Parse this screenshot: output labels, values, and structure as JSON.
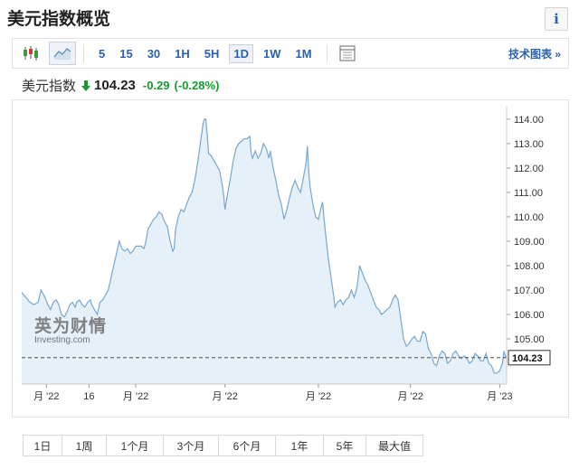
{
  "title": "美元指数概览",
  "info_label": "i",
  "toolbar": {
    "icons": [
      "candlestick-icon",
      "area-chart-icon",
      "table-icon"
    ],
    "intervals": [
      "5",
      "15",
      "30",
      "1H",
      "5H",
      "1D",
      "1W",
      "1M"
    ],
    "active_interval": "1D",
    "tech_chart_label": "技术图表 »"
  },
  "quote": {
    "name": "美元指数",
    "last": "104.23",
    "change": "-0.29",
    "change_pct": "(-0.28%)",
    "direction": "down",
    "color_down": "#169c2b"
  },
  "watermark": {
    "cn": "英为财情",
    "en": "Investing.com"
  },
  "ranges": [
    "1日",
    "1周",
    "1个月",
    "3个月",
    "6个月",
    "1年",
    "5年",
    "最大值"
  ],
  "chart_data": {
    "type": "area",
    "y_ticks": [
      "114.00",
      "113.00",
      "112.00",
      "111.00",
      "110.00",
      "109.00",
      "108.00",
      "107.00",
      "106.00",
      "105.00"
    ],
    "ylim": [
      103.15,
      114.55
    ],
    "x_tick_labels": [
      "月 '22",
      "16",
      "月 '22",
      "月 '22",
      "月 '22",
      "月 '22",
      "月 '23"
    ],
    "x_tick_positions": [
      18,
      49,
      83,
      148,
      216,
      283,
      348
    ],
    "last_value": 104.23,
    "last_label": "104.23",
    "colors": {
      "line": "#7aa7cf",
      "fill": "#e6f0f8",
      "dash": "#333333"
    },
    "points": [
      [
        0,
        106.9
      ],
      [
        3,
        106.7
      ],
      [
        6,
        106.5
      ],
      [
        9,
        106.4
      ],
      [
        12,
        106.5
      ],
      [
        14,
        107.0
      ],
      [
        16,
        106.8
      ],
      [
        17,
        106.7
      ],
      [
        19,
        106.4
      ],
      [
        21,
        106.2
      ],
      [
        23,
        106.5
      ],
      [
        25,
        106.6
      ],
      [
        27,
        106.4
      ],
      [
        29,
        106.0
      ],
      [
        31,
        105.9
      ],
      [
        33,
        106.1
      ],
      [
        35,
        106.4
      ],
      [
        37,
        106.5
      ],
      [
        39,
        106.3
      ],
      [
        40,
        106.5
      ],
      [
        42,
        106.6
      ],
      [
        44,
        106.4
      ],
      [
        46,
        106.3
      ],
      [
        48,
        106.5
      ],
      [
        50,
        106.6
      ],
      [
        51,
        106.4
      ],
      [
        53,
        106.2
      ],
      [
        55,
        106.0
      ],
      [
        57,
        106.5
      ],
      [
        59,
        106.6
      ],
      [
        61,
        106.8
      ],
      [
        63,
        107.0
      ],
      [
        65,
        107.5
      ],
      [
        67,
        108.0
      ],
      [
        69,
        108.5
      ],
      [
        71,
        109.0
      ],
      [
        73,
        108.7
      ],
      [
        75,
        108.6
      ],
      [
        77,
        108.7
      ],
      [
        79,
        108.5
      ],
      [
        81,
        108.6
      ],
      [
        83,
        108.8
      ],
      [
        85,
        108.8
      ],
      [
        87,
        108.8
      ],
      [
        89,
        108.7
      ],
      [
        90,
        108.9
      ],
      [
        92,
        109.5
      ],
      [
        94,
        109.7
      ],
      [
        96,
        109.9
      ],
      [
        98,
        110.0
      ],
      [
        100,
        110.2
      ],
      [
        102,
        110.1
      ],
      [
        104,
        109.8
      ],
      [
        106,
        109.6
      ],
      [
        108,
        109.0
      ],
      [
        110,
        108.6
      ],
      [
        111,
        108.7
      ],
      [
        112,
        109.5
      ],
      [
        114,
        110.0
      ],
      [
        116,
        110.3
      ],
      [
        118,
        110.2
      ],
      [
        120,
        110.5
      ],
      [
        122,
        110.8
      ],
      [
        124,
        111.0
      ],
      [
        126,
        111.5
      ],
      [
        128,
        112.2
      ],
      [
        130,
        113.0
      ],
      [
        132,
        113.8
      ],
      [
        133,
        114.0
      ],
      [
        134,
        114.0
      ],
      [
        135,
        113.4
      ],
      [
        136,
        112.6
      ],
      [
        138,
        112.5
      ],
      [
        140,
        112.3
      ],
      [
        142,
        112.1
      ],
      [
        144,
        111.9
      ],
      [
        146,
        111.3
      ],
      [
        147,
        110.9
      ],
      [
        148,
        110.3
      ],
      [
        150,
        111.0
      ],
      [
        152,
        111.6
      ],
      [
        154,
        112.3
      ],
      [
        156,
        112.8
      ],
      [
        158,
        113.0
      ],
      [
        160,
        113.1
      ],
      [
        162,
        113.2
      ],
      [
        164,
        113.2
      ],
      [
        166,
        113.3
      ],
      [
        167,
        112.6
      ],
      [
        168,
        112.4
      ],
      [
        170,
        112.7
      ],
      [
        172,
        112.4
      ],
      [
        174,
        112.6
      ],
      [
        176,
        113.0
      ],
      [
        178,
        112.8
      ],
      [
        180,
        112.4
      ],
      [
        181,
        112.7
      ],
      [
        183,
        112.0
      ],
      [
        185,
        111.5
      ],
      [
        187,
        110.9
      ],
      [
        189,
        110.5
      ],
      [
        191,
        109.9
      ],
      [
        193,
        110.3
      ],
      [
        195,
        110.8
      ],
      [
        197,
        111.2
      ],
      [
        199,
        111.5
      ],
      [
        201,
        111.2
      ],
      [
        203,
        111.0
      ],
      [
        205,
        111.6
      ],
      [
        207,
        112.2
      ],
      [
        208,
        112.9
      ],
      [
        209,
        111.8
      ],
      [
        210,
        111.2
      ],
      [
        212,
        110.5
      ],
      [
        214,
        110.0
      ],
      [
        216,
        109.9
      ],
      [
        218,
        110.4
      ],
      [
        219,
        110.6
      ],
      [
        221,
        109.4
      ],
      [
        223,
        108.4
      ],
      [
        225,
        107.6
      ],
      [
        227,
        106.8
      ],
      [
        228,
        106.3
      ],
      [
        230,
        106.5
      ],
      [
        232,
        106.6
      ],
      [
        234,
        106.4
      ],
      [
        236,
        106.6
      ],
      [
        238,
        106.7
      ],
      [
        240,
        107.0
      ],
      [
        242,
        106.7
      ],
      [
        244,
        107.1
      ],
      [
        246,
        108.0
      ],
      [
        248,
        107.7
      ],
      [
        250,
        107.4
      ],
      [
        252,
        107.2
      ],
      [
        254,
        106.9
      ],
      [
        256,
        106.6
      ],
      [
        258,
        106.3
      ],
      [
        260,
        106.2
      ],
      [
        262,
        106.0
      ],
      [
        264,
        106.1
      ],
      [
        266,
        106.2
      ],
      [
        268,
        106.3
      ],
      [
        270,
        106.6
      ],
      [
        272,
        106.8
      ],
      [
        274,
        106.6
      ],
      [
        276,
        105.8
      ],
      [
        278,
        105.0
      ],
      [
        280,
        104.7
      ],
      [
        282,
        104.8
      ],
      [
        284,
        105.0
      ],
      [
        286,
        105.1
      ],
      [
        288,
        104.9
      ],
      [
        290,
        104.9
      ],
      [
        292,
        105.3
      ],
      [
        294,
        105.2
      ],
      [
        296,
        104.6
      ],
      [
        298,
        104.4
      ],
      [
        300,
        104.0
      ],
      [
        302,
        103.9
      ],
      [
        304,
        104.3
      ],
      [
        306,
        104.5
      ],
      [
        308,
        104.4
      ],
      [
        310,
        104.0
      ],
      [
        312,
        104.1
      ],
      [
        314,
        104.4
      ],
      [
        316,
        104.5
      ],
      [
        318,
        104.3
      ],
      [
        320,
        104.2
      ],
      [
        322,
        104.3
      ],
      [
        324,
        104.2
      ],
      [
        326,
        104.0
      ],
      [
        328,
        104.1
      ],
      [
        330,
        104.4
      ],
      [
        332,
        104.3
      ],
      [
        334,
        104.1
      ],
      [
        336,
        104.1
      ],
      [
        338,
        104.4
      ],
      [
        340,
        104.0
      ],
      [
        342,
        103.9
      ],
      [
        344,
        103.6
      ],
      [
        346,
        103.6
      ],
      [
        348,
        103.7
      ],
      [
        350,
        104.0
      ],
      [
        351,
        104.5
      ],
      [
        352,
        104.3
      ],
      [
        353,
        104.23
      ]
    ]
  }
}
